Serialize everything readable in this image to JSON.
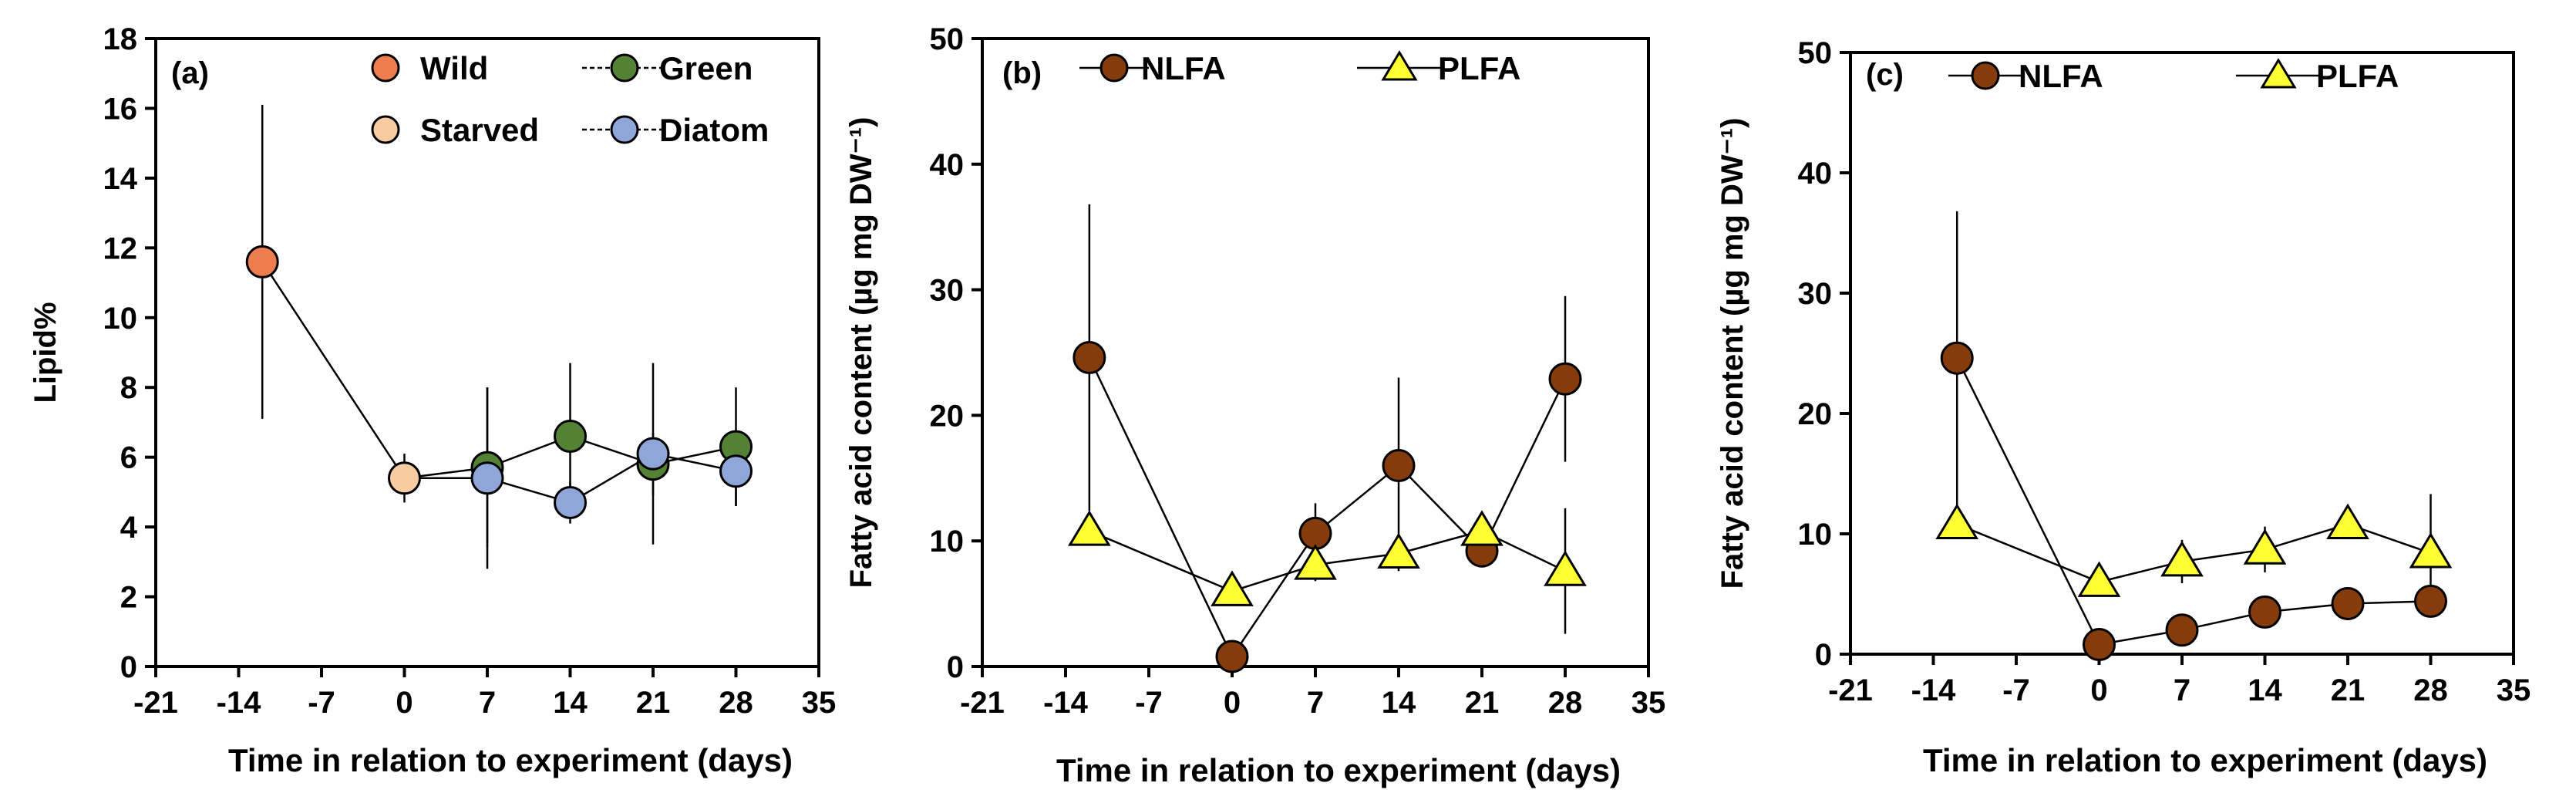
{
  "chart_data": [
    {
      "type": "line",
      "panel_label": "(a)",
      "xlabel": "Time in relation to experiment (days)",
      "ylabel": "Lipid%",
      "xlim": [
        -21,
        35
      ],
      "ylim": [
        0,
        18
      ],
      "xticks": [
        -21,
        -14,
        -7,
        0,
        7,
        14,
        21,
        28,
        35
      ],
      "xtick_labels": [
        "-21",
        "-14",
        "-7",
        "0",
        "7",
        "14",
        "21",
        "28",
        "35"
      ],
      "yticks": [
        0,
        2,
        4,
        6,
        8,
        10,
        12,
        14,
        16,
        18
      ],
      "ytick_labels": [
        "0",
        "2",
        "4",
        "6",
        "8",
        "10",
        "12",
        "14",
        "16",
        "18"
      ],
      "legend": [
        {
          "name": "Wild",
          "color": "#ed7d4f",
          "marker": "circle"
        },
        {
          "name": "Green",
          "color": "#548235",
          "marker": "circle"
        },
        {
          "name": "Starved",
          "color": "#f8cba0",
          "marker": "circle"
        },
        {
          "name": "Diatom",
          "color": "#8fa6d9",
          "marker": "circle"
        }
      ],
      "series": [
        {
          "name": "Wild",
          "color": "#ed7d4f",
          "marker": "circle",
          "points": [
            {
              "x": -12,
              "y": 11.6,
              "err": 4.5
            }
          ],
          "line": false
        },
        {
          "name": "Starved",
          "color": "#f8cba0",
          "marker": "circle",
          "points": [
            {
              "x": 0,
              "y": 5.4,
              "err": 0.7
            }
          ],
          "line": false
        },
        {
          "name": "Green",
          "color": "#548235",
          "marker": "circle",
          "points": [
            {
              "x": 7,
              "y": 5.7,
              "err": 2.3
            },
            {
              "x": 14,
              "y": 6.6,
              "err": 2.1
            },
            {
              "x": 21,
              "y": 5.8,
              "err": 0.9
            },
            {
              "x": 28,
              "y": 6.3,
              "err": 1.7
            }
          ],
          "line": true
        },
        {
          "name": "Diatom",
          "color": "#8fa6d9",
          "marker": "circle",
          "points": [
            {
              "x": 7,
              "y": 5.4,
              "err": 2.6
            },
            {
              "x": 14,
              "y": 4.7,
              "err": 0.6
            },
            {
              "x": 21,
              "y": 6.1,
              "err": 2.6
            },
            {
              "x": 28,
              "y": 5.6,
              "err": 1.0
            }
          ],
          "line": true
        }
      ],
      "connectors": [
        {
          "from": [
            -12,
            11.6
          ],
          "to": [
            0,
            5.4
          ]
        },
        {
          "from": [
            0,
            5.4
          ],
          "to": [
            7,
            5.7
          ]
        },
        {
          "from": [
            0,
            5.4
          ],
          "to": [
            7,
            5.4
          ]
        }
      ]
    },
    {
      "type": "line",
      "panel_label": "(b)",
      "xlabel": "Time in relation to experiment (days)",
      "ylabel": "Fatty acid content (µg mg DW⁻¹)",
      "xlim": [
        -21,
        35
      ],
      "ylim": [
        0,
        50
      ],
      "xticks": [
        -21,
        -14,
        -7,
        0,
        7,
        14,
        21,
        28,
        35
      ],
      "xtick_labels": [
        "-21",
        "-14",
        "-7",
        "0",
        "7",
        "14",
        "21",
        "28",
        "35"
      ],
      "yticks": [
        0,
        10,
        20,
        30,
        40,
        50
      ],
      "ytick_labels": [
        "0",
        "10",
        "20",
        "30",
        "40",
        "50"
      ],
      "legend": [
        {
          "name": "NLFA",
          "color": "#843c0c",
          "marker": "circle"
        },
        {
          "name": "PLFA",
          "color": "#ffff33",
          "marker": "triangle"
        }
      ],
      "series": [
        {
          "name": "NLFA",
          "color": "#843c0c",
          "marker": "circle",
          "line": true,
          "points": [
            {
              "x": -12,
              "y": 24.6,
              "err": 12.2
            },
            {
              "x": 0,
              "y": 0.8,
              "err": 0.3
            },
            {
              "x": 7,
              "y": 10.6,
              "err": 2.4
            },
            {
              "x": 14,
              "y": 16.0,
              "err": 7.0
            },
            {
              "x": 21,
              "y": 9.2,
              "err": 1.3
            },
            {
              "x": 28,
              "y": 22.9,
              "err": 6.6
            }
          ]
        },
        {
          "name": "PLFA",
          "color": "#ffff33",
          "marker": "triangle",
          "line": true,
          "points": [
            {
              "x": -12,
              "y": 10.8,
              "err": 1.0
            },
            {
              "x": 0,
              "y": 6.0,
              "err": 0.4
            },
            {
              "x": 7,
              "y": 8.1,
              "err": 1.3
            },
            {
              "x": 14,
              "y": 9.0,
              "err": 1.4
            },
            {
              "x": 21,
              "y": 10.8,
              "err": 0.5
            },
            {
              "x": 28,
              "y": 7.6,
              "err": 5.0
            }
          ]
        }
      ]
    },
    {
      "type": "line",
      "panel_label": "(c)",
      "xlabel": "Time in relation to experiment (days)",
      "ylabel": "Fatty acid content (µg mg DW⁻¹)",
      "xlim": [
        -21,
        35
      ],
      "ylim": [
        0,
        50
      ],
      "xticks": [
        -21,
        -14,
        -7,
        0,
        7,
        14,
        21,
        28,
        35
      ],
      "xtick_labels": [
        "-21",
        "-14",
        "-7",
        "0",
        "7",
        "14",
        "21",
        "28",
        "35"
      ],
      "yticks": [
        0,
        10,
        20,
        30,
        40,
        50
      ],
      "ytick_labels": [
        "0",
        "10",
        "20",
        "30",
        "40",
        "50"
      ],
      "legend": [
        {
          "name": "NLFA",
          "color": "#843c0c",
          "marker": "circle"
        },
        {
          "name": "PLFA",
          "color": "#ffff33",
          "marker": "triangle"
        }
      ],
      "series": [
        {
          "name": "NLFA",
          "color": "#843c0c",
          "marker": "circle",
          "line": true,
          "points": [
            {
              "x": -12,
              "y": 24.6,
              "err": 12.2
            },
            {
              "x": 0,
              "y": 0.8,
              "err": 0.3
            },
            {
              "x": 7,
              "y": 2.0,
              "err": 0.5
            },
            {
              "x": 14,
              "y": 3.5,
              "err": 1.0
            },
            {
              "x": 21,
              "y": 4.2,
              "err": 0.6
            },
            {
              "x": 28,
              "y": 4.4,
              "err": 0.9
            }
          ]
        },
        {
          "name": "PLFA",
          "color": "#ffff33",
          "marker": "triangle",
          "line": true,
          "points": [
            {
              "x": -12,
              "y": 10.8,
              "err": 1.0
            },
            {
              "x": 0,
              "y": 6.0,
              "err": 0.5
            },
            {
              "x": 7,
              "y": 7.7,
              "err": 1.8
            },
            {
              "x": 14,
              "y": 8.7,
              "err": 1.9
            },
            {
              "x": 21,
              "y": 10.8,
              "err": 1.0
            },
            {
              "x": 28,
              "y": 8.4,
              "err": 4.9
            }
          ]
        }
      ]
    }
  ]
}
